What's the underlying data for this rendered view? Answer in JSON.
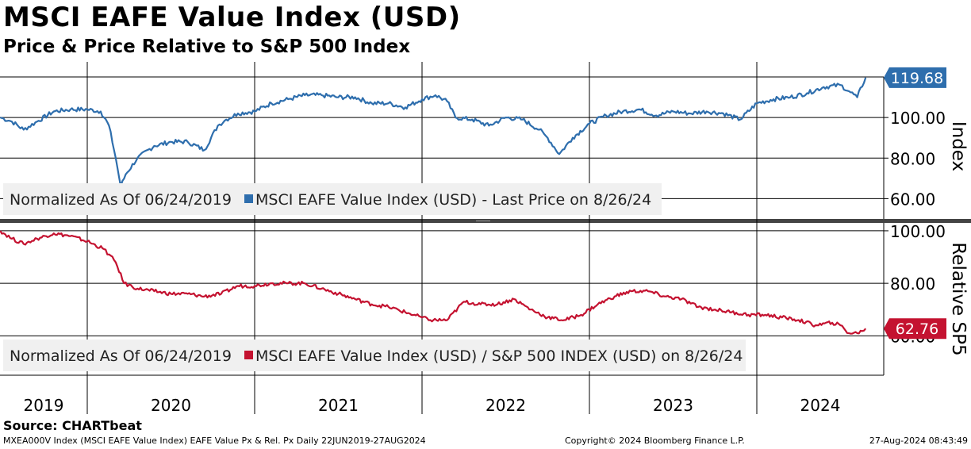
{
  "title": "MSCI EAFE Value Index (USD)",
  "subtitle": "Price & Price Relative to S&P 500 Index",
  "source": "Source: CHARTbeat",
  "footer": {
    "left": "MXEA000V Index (MSCI EAFE Value Index) EAFE Value Px & Rel. Px  Daily 22JUN2019-27AUG2024",
    "center": "Copyright© 2024 Bloomberg Finance L.P.",
    "right": "27-Aug-2024 08:43:49"
  },
  "colors": {
    "price": "#2e6ead",
    "relative": "#c41230",
    "grid": "#000000",
    "legend_bg": "#f0f0f0"
  },
  "chart_data": [
    {
      "type": "line",
      "panel": "top",
      "ylabel": "Index",
      "ylim": [
        50,
        120
      ],
      "yticks": [
        "100.00",
        "80.00",
        "60.00"
      ],
      "ytick_values": [
        100,
        80,
        60
      ],
      "legend_prefix": "Normalized As Of 06/24/2019",
      "legend_series": "MSCI EAFE Value Index (USD) - Last Price on 8/26/24",
      "last_value_label": "119.68",
      "last_value": 119.68,
      "series": [
        {
          "name": "MSCI EAFE Value Index (USD)",
          "x": [
            2019.48,
            2019.55,
            2019.62,
            2019.7,
            2019.8,
            2019.9,
            2020.0,
            2020.08,
            2020.13,
            2020.17,
            2020.2,
            2020.23,
            2020.3,
            2020.4,
            2020.5,
            2020.6,
            2020.7,
            2020.78,
            2020.83,
            2020.9,
            2021.0,
            2021.1,
            2021.2,
            2021.3,
            2021.4,
            2021.5,
            2021.6,
            2021.7,
            2021.8,
            2021.9,
            2022.0,
            2022.08,
            2022.15,
            2022.2,
            2022.3,
            2022.4,
            2022.5,
            2022.6,
            2022.7,
            2022.75,
            2022.82,
            2022.9,
            2023.0,
            2023.1,
            2023.2,
            2023.3,
            2023.4,
            2023.5,
            2023.6,
            2023.7,
            2023.8,
            2023.9,
            2024.0,
            2024.1,
            2024.2,
            2024.3,
            2024.4,
            2024.5,
            2024.55,
            2024.6,
            2024.65
          ],
          "values": [
            100,
            98,
            94,
            98,
            103,
            104,
            104,
            103,
            96,
            80,
            66,
            72,
            80,
            86,
            88,
            88,
            84,
            96,
            99,
            102,
            103,
            107,
            109,
            111,
            111,
            110,
            110,
            107,
            107,
            105,
            109,
            111,
            108,
            100,
            99,
            96,
            100,
            99,
            94,
            90,
            82,
            90,
            97,
            101,
            103,
            104,
            101,
            103,
            102,
            103,
            102,
            99,
            107,
            109,
            110,
            112,
            115,
            116,
            113,
            110,
            119.68
          ]
        }
      ]
    },
    {
      "type": "line",
      "panel": "bottom",
      "ylabel": "Relative SP5",
      "ylim": [
        45,
        103
      ],
      "yticks": [
        "100.00",
        "80.00",
        "60.00"
      ],
      "ytick_values": [
        100,
        80,
        60
      ],
      "legend_prefix": "Normalized As Of 06/24/2019",
      "legend_series": "MSCI EAFE Value Index (USD) / S&P 500 INDEX (USD) on 8/26/24",
      "last_value_label": "62.76",
      "last_value": 62.76,
      "series": [
        {
          "name": "MSCI EAFE Value Index (USD) / S&P 500 INDEX (USD)",
          "x": [
            2019.48,
            2019.55,
            2019.62,
            2019.7,
            2019.8,
            2019.9,
            2020.0,
            2020.1,
            2020.17,
            2020.22,
            2020.3,
            2020.4,
            2020.5,
            2020.6,
            2020.7,
            2020.8,
            2020.9,
            2021.0,
            2021.1,
            2021.2,
            2021.3,
            2021.4,
            2021.5,
            2021.6,
            2021.7,
            2021.8,
            2021.9,
            2022.0,
            2022.05,
            2022.15,
            2022.25,
            2022.35,
            2022.45,
            2022.55,
            2022.65,
            2022.75,
            2022.85,
            2022.95,
            2023.05,
            2023.15,
            2023.25,
            2023.35,
            2023.45,
            2023.55,
            2023.65,
            2023.75,
            2023.85,
            2023.95,
            2024.05,
            2024.15,
            2024.25,
            2024.35,
            2024.45,
            2024.5,
            2024.55,
            2024.6,
            2024.65
          ],
          "values": [
            100,
            97,
            95,
            97,
            99,
            98,
            96,
            93,
            88,
            80,
            78,
            77,
            76,
            76,
            75,
            76,
            79,
            79,
            80,
            80,
            80,
            78,
            76,
            74,
            72,
            71,
            69,
            67,
            66,
            66,
            73,
            72,
            72,
            74,
            70,
            67,
            66,
            68,
            72,
            75,
            77,
            77,
            75,
            74,
            71,
            70,
            69,
            68,
            68,
            67,
            66,
            64,
            65,
            64,
            61,
            61,
            62.76
          ]
        }
      ]
    }
  ],
  "x_axis": {
    "labels": [
      "2019",
      "2020",
      "2021",
      "2022",
      "2023",
      "2024"
    ],
    "year_starts": [
      2020,
      2021,
      2022,
      2023,
      2024
    ]
  }
}
